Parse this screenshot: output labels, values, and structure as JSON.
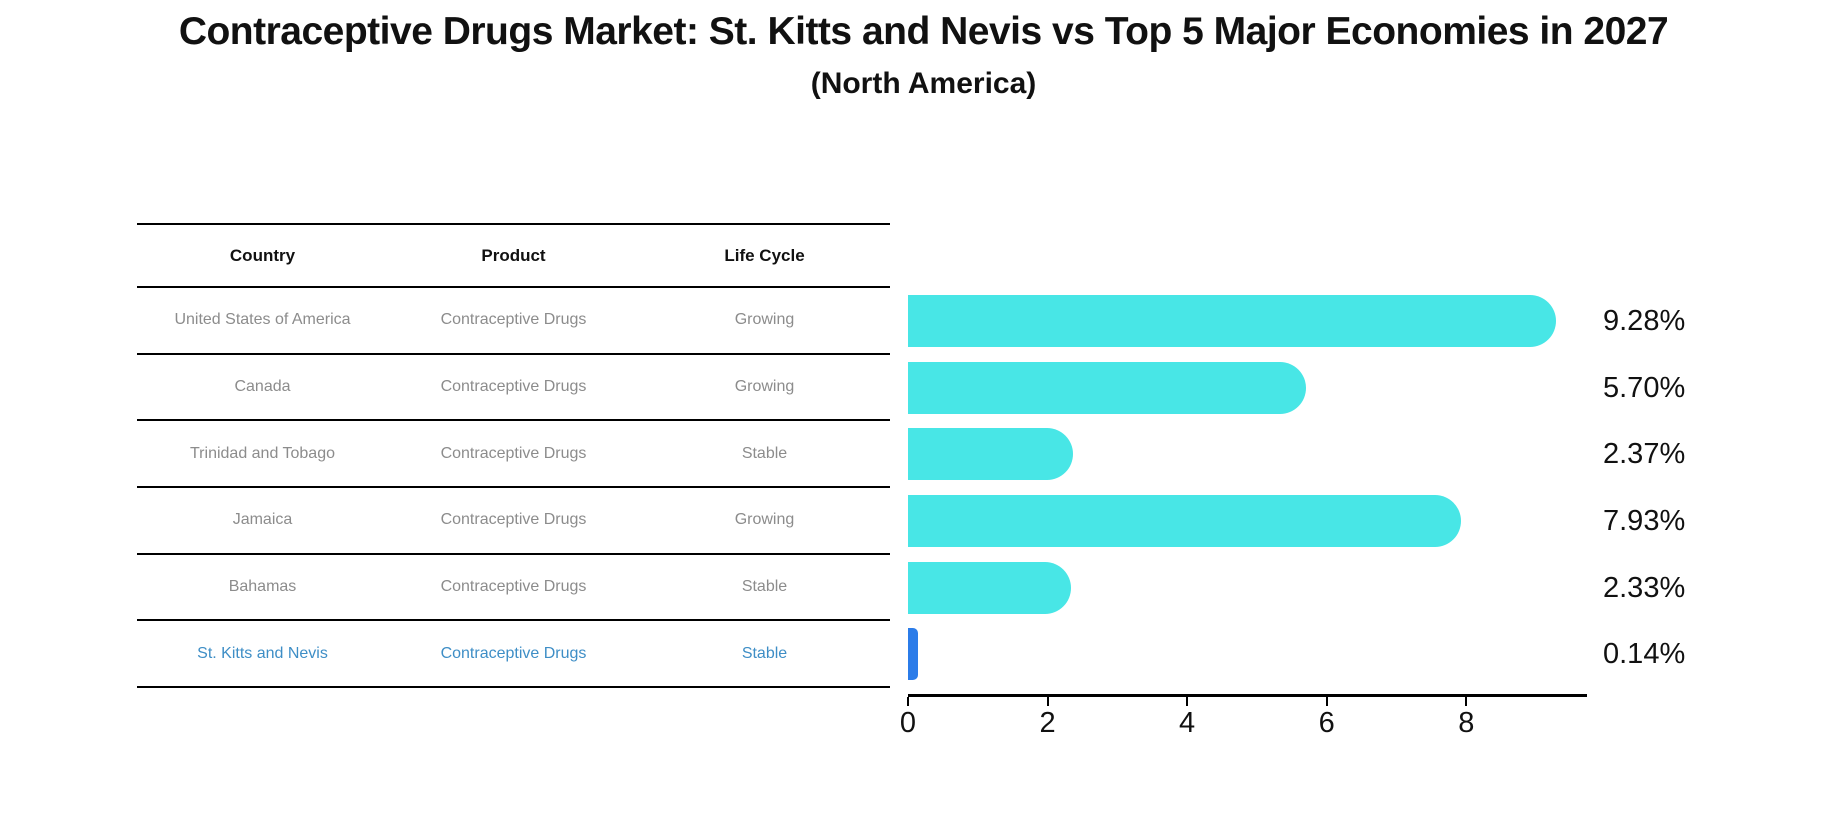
{
  "title": "Contraceptive Drugs Market: St. Kitts and Nevis vs Top 5 Major Economies in 2027",
  "subtitle": "(North America)",
  "table": {
    "headers": [
      "Country",
      "Product",
      "Life Cycle"
    ]
  },
  "rows": [
    {
      "country": "United States of America",
      "product": "Contraceptive Drugs",
      "life_cycle": "Growing",
      "value": 9.28,
      "value_label": "9.28%",
      "highlight": false
    },
    {
      "country": "Canada",
      "product": "Contraceptive Drugs",
      "life_cycle": "Growing",
      "value": 5.7,
      "value_label": "5.70%",
      "highlight": false
    },
    {
      "country": "Trinidad and Tobago",
      "product": "Contraceptive Drugs",
      "life_cycle": "Stable",
      "value": 2.37,
      "value_label": "2.37%",
      "highlight": false
    },
    {
      "country": "Jamaica",
      "product": "Contraceptive Drugs",
      "life_cycle": "Growing",
      "value": 7.93,
      "value_label": "7.93%",
      "highlight": false
    },
    {
      "country": "Bahamas",
      "product": "Contraceptive Drugs",
      "life_cycle": "Stable",
      "value": 2.33,
      "value_label": "2.33%",
      "highlight": false
    },
    {
      "country": "St. Kitts and Nevis",
      "product": "Contraceptive Drugs",
      "life_cycle": "Stable",
      "value": 0.14,
      "value_label": "0.14%",
      "highlight": true
    }
  ],
  "chart_data": {
    "type": "bar",
    "orientation": "horizontal",
    "title": "Contraceptive Drugs Market: St. Kitts and Nevis vs Top 5 Major Economies in 2027",
    "subtitle": "(North America)",
    "categories": [
      "United States of America",
      "Canada",
      "Trinidad and Tobago",
      "Jamaica",
      "Bahamas",
      "St. Kitts and Nevis"
    ],
    "values": [
      9.28,
      5.7,
      2.37,
      7.93,
      2.33,
      0.14
    ],
    "value_labels": [
      "9.28%",
      "5.70%",
      "2.37%",
      "7.93%",
      "2.33%",
      "0.14%"
    ],
    "xlabel": "",
    "ylabel": "",
    "xlim": [
      0,
      9.73
    ],
    "x_ticks": [
      0,
      2,
      4,
      6,
      8
    ],
    "grid": false,
    "legend": false,
    "highlight_category": "St. Kitts and Nevis"
  },
  "colors": {
    "bar": "#48e6e6",
    "highlight_bar": "#2b7ce9",
    "highlight_text": "#3e8ec6",
    "table_text": "#8c8c8c",
    "text": "#111111",
    "line": "#000000"
  }
}
